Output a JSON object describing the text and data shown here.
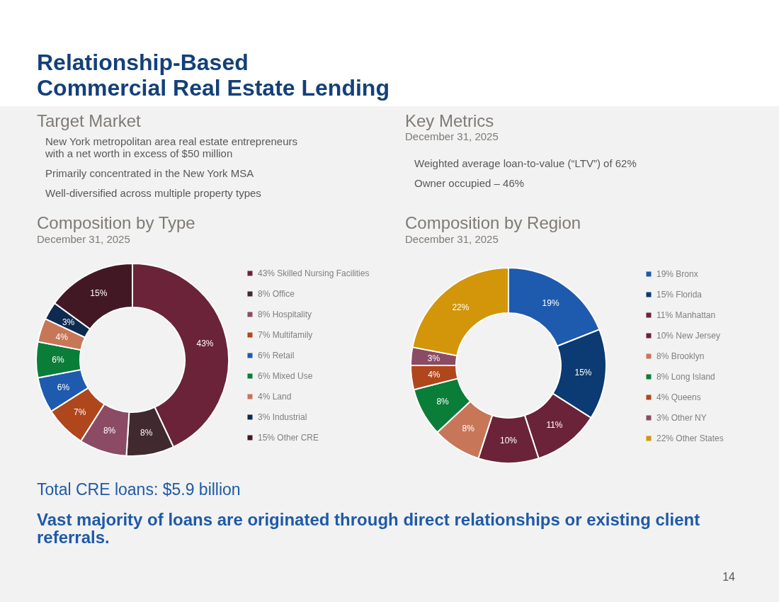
{
  "chart_data": [
    {
      "type": "other",
      "title": "Relationship-Based\nCommercial Real Estate Lending"
    },
    {
      "type": "other",
      "title": "Target Market",
      "annotations": [
        "New York metropolitan area real estate entrepreneurs\nwith a net worth in excess of $50 million",
        "Primarily concentrated in the New York MSA",
        "Well-diversified across multiple property types"
      ]
    },
    {
      "type": "other",
      "title": "Key Metrics",
      "subtitle": "December 31, 2025",
      "annotations": [
        "Weighted average loan-to-value (“LTV”) of 62%",
        "Owner occupied – 46%"
      ]
    },
    {
      "type": "donut",
      "title": "Composition by Type",
      "subtitle": "December 31, 2025",
      "categories": [
        "Skilled Nursing Facilities",
        "Office",
        "Hospitality",
        "Multifamily",
        "Retail",
        "Mixed Use",
        "Land",
        "Industrial",
        "Other CRE"
      ],
      "values": [
        43,
        8,
        8,
        7,
        6,
        6,
        4,
        3,
        15
      ],
      "value_labels": [
        "43%",
        "8%",
        "8%",
        "7%",
        "6%",
        "6%",
        "4%",
        "3%",
        "15%"
      ],
      "colors": [
        "#6b2339",
        "#40292f",
        "#8b4b64",
        "#b0461c",
        "#1e5aae",
        "#0a7d38",
        "#c87658",
        "#0d2a50",
        "#431825"
      ],
      "legend": "right"
    },
    {
      "type": "donut",
      "title": "Composition by Region",
      "subtitle": "December 31, 2025",
      "categories": [
        "Bronx",
        "Florida",
        "Manhattan",
        "New Jersey",
        "Brooklyn",
        "Long Island",
        "Queens",
        "Other NY",
        "Other States"
      ],
      "values": [
        19,
        15,
        11,
        10,
        8,
        8,
        4,
        3,
        22
      ],
      "value_labels": [
        "19%",
        "15%",
        "11%",
        "10%",
        "8%",
        "8%",
        "4%",
        "3%",
        "22%"
      ],
      "colors": [
        "#1e5aae",
        "#0c3a72",
        "#6b2339",
        "#6b2339",
        "#c87658",
        "#0a7d38",
        "#b0461c",
        "#8b4b64",
        "#d39509"
      ],
      "legend": "right"
    },
    {
      "type": "other",
      "annotations": [
        "Total CRE loans: $5.9 billion",
        "Vast majority of loans are originated through direct relationships or existing client\nreferrals.",
        "14"
      ]
    }
  ]
}
